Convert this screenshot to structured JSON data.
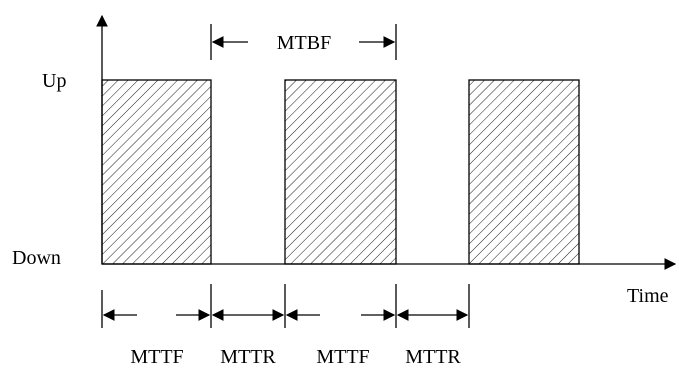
{
  "diagram": {
    "y_axis": {
      "up_label": "Up",
      "down_label": "Down"
    },
    "x_axis": {
      "label": "Time"
    },
    "mtbf_label": "MTBF",
    "interval_labels": [
      "MTTF",
      "MTTR",
      "MTTF",
      "MTTR"
    ],
    "up_periods": 3
  }
}
